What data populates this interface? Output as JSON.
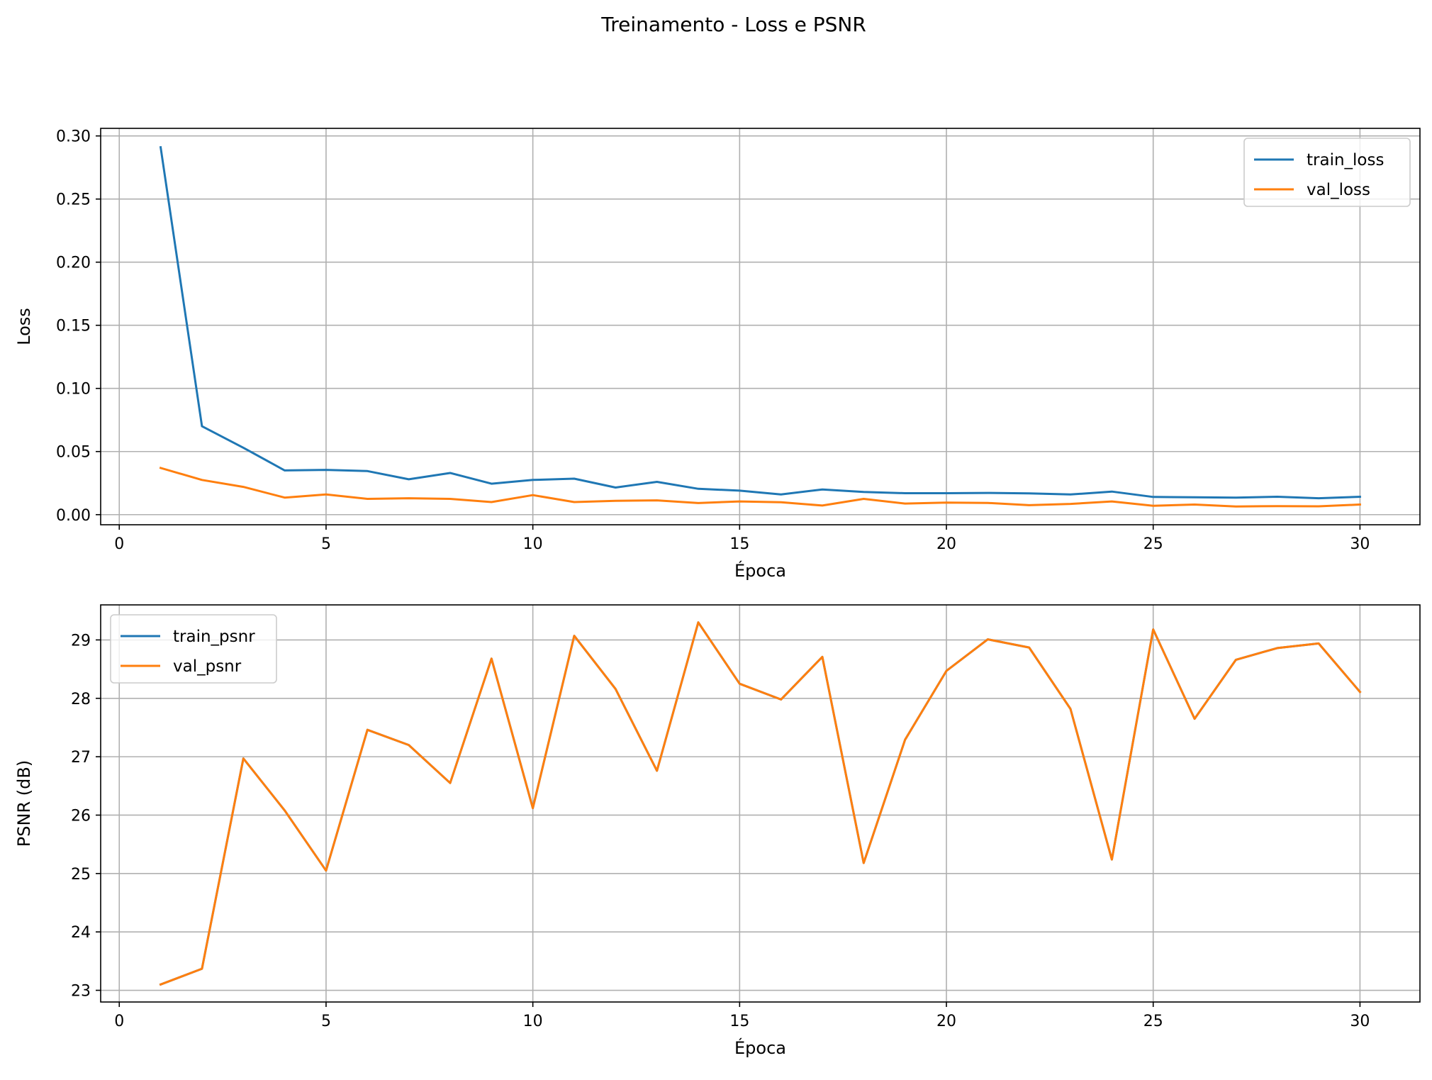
{
  "figure": {
    "title": "Treinamento - Loss e PSNR"
  },
  "chart_data": [
    {
      "type": "line",
      "title": "",
      "xlabel": "Época",
      "ylabel": "Loss",
      "xlim": [
        -0.45,
        31.45
      ],
      "ylim": [
        -0.008,
        0.306
      ],
      "xticks": [
        0,
        5,
        10,
        15,
        20,
        25,
        30
      ],
      "yticks": [
        0.0,
        0.05,
        0.1,
        0.15,
        0.2,
        0.25,
        0.3
      ],
      "ytick_labels": [
        "0.00",
        "0.05",
        "0.10",
        "0.15",
        "0.20",
        "0.25",
        "0.30"
      ],
      "grid": true,
      "legend_position": "top-right",
      "x": [
        1,
        2,
        3,
        4,
        5,
        6,
        7,
        8,
        9,
        10,
        11,
        12,
        13,
        14,
        15,
        16,
        17,
        18,
        19,
        20,
        21,
        22,
        23,
        24,
        25,
        26,
        27,
        28,
        29,
        30
      ],
      "series": [
        {
          "name": "train_loss",
          "color": "#1f77b4",
          "values": [
            0.291,
            0.07,
            0.053,
            0.035,
            0.0355,
            0.0345,
            0.028,
            0.033,
            0.0245,
            0.0275,
            0.0285,
            0.0215,
            0.026,
            0.0205,
            0.019,
            0.016,
            0.02,
            0.018,
            0.017,
            0.017,
            0.0172,
            0.0168,
            0.016,
            0.0183,
            0.014,
            0.0138,
            0.0135,
            0.0142,
            0.013,
            0.0142
          ]
        },
        {
          "name": "val_loss",
          "color": "#ff7f0e",
          "values": [
            0.037,
            0.0275,
            0.022,
            0.0135,
            0.016,
            0.0125,
            0.013,
            0.0125,
            0.01,
            0.0155,
            0.01,
            0.011,
            0.0113,
            0.0092,
            0.0105,
            0.0098,
            0.0072,
            0.0125,
            0.0088,
            0.0095,
            0.0093,
            0.0075,
            0.0085,
            0.0105,
            0.007,
            0.008,
            0.0065,
            0.0068,
            0.0066,
            0.008
          ]
        }
      ]
    },
    {
      "type": "line",
      "title": "",
      "xlabel": "Época",
      "ylabel": "PSNR (dB)",
      "xlim": [
        -0.45,
        31.45
      ],
      "ylim": [
        22.8,
        29.6
      ],
      "xticks": [
        0,
        5,
        10,
        15,
        20,
        25,
        30
      ],
      "yticks": [
        23,
        24,
        25,
        26,
        27,
        28,
        29
      ],
      "ytick_labels": [
        "23",
        "24",
        "25",
        "26",
        "27",
        "28",
        "29"
      ],
      "grid": true,
      "legend_position": "top-left",
      "x": [
        1,
        2,
        3,
        4,
        5,
        6,
        7,
        8,
        9,
        10,
        11,
        12,
        13,
        14,
        15,
        16,
        17,
        18,
        19,
        20,
        21,
        22,
        23,
        24,
        25,
        26,
        27,
        28,
        29,
        30
      ],
      "series": [
        {
          "name": "train_psnr",
          "color": "#1f77b4",
          "values": [
            23.1,
            23.37,
            26.97,
            26.08,
            25.05,
            27.46,
            27.2,
            26.55,
            28.68,
            26.12,
            29.07,
            28.16,
            26.76,
            29.3,
            28.25,
            27.98,
            28.71,
            25.18,
            27.29,
            28.47,
            29.01,
            28.87,
            27.82,
            25.24,
            29.18,
            27.65,
            28.66,
            28.86,
            28.94,
            28.11
          ]
        },
        {
          "name": "val_psnr",
          "color": "#ff7f0e",
          "values": [
            23.1,
            23.37,
            26.97,
            26.08,
            25.05,
            27.46,
            27.2,
            26.55,
            28.68,
            26.12,
            29.07,
            28.16,
            26.76,
            29.3,
            28.25,
            27.98,
            28.71,
            25.18,
            27.29,
            28.47,
            29.01,
            28.87,
            27.82,
            25.24,
            29.18,
            27.65,
            28.66,
            28.86,
            28.94,
            28.11
          ]
        }
      ]
    }
  ]
}
